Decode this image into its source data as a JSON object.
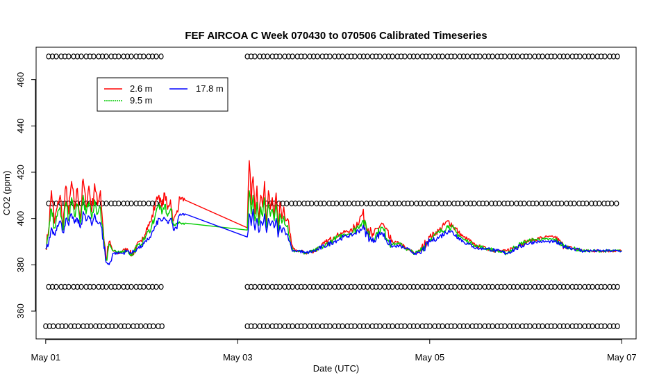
{
  "chart_data": {
    "type": "line",
    "title": "FEF AIRCOA C  Week 070430 to 070506  Calibrated Timeseries",
    "xlabel": "Date (UTC)",
    "ylabel": "CO2 (ppm)",
    "xlim": [
      -0.1,
      6.15
    ],
    "ylim": [
      348,
      474
    ],
    "x_ticks": [
      {
        "value": 0,
        "label": "May 01"
      },
      {
        "value": 2,
        "label": "May 03"
      },
      {
        "value": 4,
        "label": "May 05"
      },
      {
        "value": 6,
        "label": "May 07"
      }
    ],
    "y_ticks": [
      360,
      380,
      400,
      420,
      440,
      460
    ],
    "grid": false,
    "legend": {
      "placement": "top-left",
      "entries": [
        {
          "name": "2.6 m",
          "color": "#ff0000"
        },
        {
          "name": "9.5 m",
          "color": "#00cc00"
        },
        {
          "name": "17.8 m",
          "color": "#0000ff"
        }
      ]
    },
    "series": [
      {
        "name": "2.6 m",
        "color": "#ff0000",
        "x": [
          0.0,
          0.03,
          0.06,
          0.09,
          0.12,
          0.15,
          0.18,
          0.21,
          0.24,
          0.27,
          0.3,
          0.33,
          0.36,
          0.39,
          0.42,
          0.45,
          0.48,
          0.51,
          0.54,
          0.57,
          0.6,
          0.63,
          0.66,
          0.7,
          0.75,
          0.8,
          0.85,
          0.9,
          0.95,
          1.0,
          1.05,
          1.1,
          1.15,
          1.18,
          1.21,
          1.24,
          1.27,
          1.3,
          1.33,
          1.36,
          1.4,
          1.45,
          2.1,
          2.12,
          2.14,
          2.16,
          2.18,
          2.2,
          2.22,
          2.24,
          2.26,
          2.28,
          2.3,
          2.32,
          2.34,
          2.36,
          2.38,
          2.4,
          2.42,
          2.44,
          2.46,
          2.48,
          2.5,
          2.52,
          2.54,
          2.56,
          2.58,
          2.6,
          2.65,
          2.7,
          2.8,
          2.9,
          3.0,
          3.1,
          3.2,
          3.3,
          3.4,
          3.5,
          3.6,
          3.7,
          3.75,
          3.8,
          3.85,
          3.9,
          4.0,
          4.1,
          4.2,
          4.3,
          4.35,
          4.4,
          4.45,
          4.5,
          4.6,
          4.7,
          4.8,
          4.9,
          5.0,
          5.1,
          5.2,
          5.3,
          5.4,
          5.5,
          5.6,
          5.7,
          5.8,
          5.9,
          6.0
        ],
        "values": [
          387,
          395,
          412,
          398,
          405,
          410,
          396,
          414,
          402,
          416,
          404,
          413,
          400,
          417,
          405,
          414,
          403,
          415,
          406,
          412,
          395,
          382,
          390,
          386,
          385,
          386,
          387,
          384,
          389,
          390,
          396,
          399,
          408,
          410,
          405,
          411,
          404,
          408,
          399,
          402,
          409,
          408,
          396,
          425,
          406,
          418,
          402,
          414,
          399,
          410,
          405,
          416,
          398,
          412,
          404,
          409,
          401,
          411,
          396,
          407,
          400,
          405,
          399,
          400,
          394,
          389,
          387,
          386,
          386,
          385,
          386,
          389,
          392,
          394,
          395,
          402,
          392,
          398,
          390,
          389,
          387,
          386,
          385,
          386,
          392,
          395,
          399,
          394,
          392,
          391,
          389,
          388,
          387,
          386,
          386,
          388,
          390,
          391,
          392,
          392,
          388,
          387,
          386,
          386,
          386,
          386,
          386
        ]
      },
      {
        "name": "9.5 m",
        "color": "#00cc00",
        "x": [
          0.0,
          0.03,
          0.06,
          0.09,
          0.12,
          0.15,
          0.18,
          0.21,
          0.24,
          0.27,
          0.3,
          0.33,
          0.36,
          0.39,
          0.42,
          0.45,
          0.48,
          0.51,
          0.54,
          0.57,
          0.6,
          0.63,
          0.66,
          0.7,
          0.75,
          0.8,
          0.85,
          0.9,
          0.95,
          1.0,
          1.05,
          1.1,
          1.15,
          1.18,
          1.21,
          1.24,
          1.27,
          1.3,
          1.33,
          1.36,
          1.4,
          1.45,
          2.1,
          2.12,
          2.14,
          2.16,
          2.18,
          2.2,
          2.22,
          2.24,
          2.26,
          2.28,
          2.3,
          2.32,
          2.34,
          2.36,
          2.38,
          2.4,
          2.42,
          2.44,
          2.46,
          2.48,
          2.5,
          2.52,
          2.54,
          2.56,
          2.58,
          2.6,
          2.65,
          2.7,
          2.8,
          2.9,
          3.0,
          3.1,
          3.2,
          3.3,
          3.4,
          3.5,
          3.6,
          3.7,
          3.75,
          3.8,
          3.85,
          3.9,
          4.0,
          4.1,
          4.2,
          4.3,
          4.35,
          4.4,
          4.45,
          4.5,
          4.6,
          4.7,
          4.8,
          4.9,
          5.0,
          5.1,
          5.2,
          5.3,
          5.4,
          5.5,
          5.6,
          5.7,
          5.8,
          5.9,
          6.0
        ],
        "values": [
          387,
          393,
          404,
          396,
          401,
          405,
          395,
          407,
          399,
          409,
          401,
          406,
          398,
          410,
          402,
          407,
          400,
          408,
          402,
          405,
          393,
          382,
          389,
          386,
          385,
          386,
          386,
          384,
          388,
          389,
          393,
          396,
          403,
          406,
          402,
          406,
          401,
          404,
          397,
          398,
          398,
          398,
          395,
          412,
          402,
          410,
          399,
          407,
          397,
          405,
          401,
          409,
          396,
          406,
          401,
          404,
          399,
          406,
          394,
          402,
          398,
          401,
          397,
          397,
          392,
          388,
          386,
          386,
          386,
          385,
          386,
          388,
          391,
          393,
          394,
          399,
          391,
          396,
          389,
          389,
          387,
          386,
          385,
          386,
          391,
          394,
          397,
          393,
          391,
          390,
          389,
          388,
          387,
          386,
          385,
          388,
          390,
          391,
          391,
          391,
          388,
          387,
          386,
          386,
          386,
          386,
          386
        ]
      },
      {
        "name": "17.8 m",
        "color": "#0000ff",
        "x": [
          0.0,
          0.03,
          0.06,
          0.09,
          0.12,
          0.15,
          0.18,
          0.21,
          0.24,
          0.27,
          0.3,
          0.33,
          0.36,
          0.39,
          0.42,
          0.45,
          0.48,
          0.51,
          0.54,
          0.57,
          0.6,
          0.63,
          0.66,
          0.7,
          0.75,
          0.8,
          0.85,
          0.9,
          0.95,
          1.0,
          1.05,
          1.1,
          1.15,
          1.18,
          1.21,
          1.24,
          1.27,
          1.3,
          1.33,
          1.36,
          1.4,
          1.45,
          2.1,
          2.12,
          2.14,
          2.16,
          2.18,
          2.2,
          2.22,
          2.24,
          2.26,
          2.28,
          2.3,
          2.32,
          2.34,
          2.36,
          2.38,
          2.4,
          2.42,
          2.44,
          2.46,
          2.48,
          2.5,
          2.52,
          2.54,
          2.56,
          2.58,
          2.6,
          2.65,
          2.7,
          2.8,
          2.9,
          3.0,
          3.1,
          3.2,
          3.3,
          3.4,
          3.5,
          3.6,
          3.7,
          3.75,
          3.8,
          3.85,
          3.9,
          4.0,
          4.1,
          4.2,
          4.3,
          4.35,
          4.4,
          4.45,
          4.5,
          4.6,
          4.7,
          4.8,
          4.9,
          5.0,
          5.1,
          5.2,
          5.3,
          5.4,
          5.5,
          5.6,
          5.7,
          5.8,
          5.9,
          6.0
        ],
        "values": [
          387,
          389,
          396,
          393,
          397,
          399,
          394,
          400,
          397,
          402,
          398,
          400,
          396,
          403,
          399,
          401,
          397,
          402,
          398,
          398,
          391,
          381,
          380,
          385,
          385,
          385,
          386,
          385,
          387,
          388,
          390,
          393,
          397,
          400,
          399,
          400,
          398,
          400,
          395,
          396,
          402,
          402,
          392,
          402,
          397,
          404,
          395,
          400,
          394,
          399,
          397,
          402,
          394,
          400,
          397,
          399,
          396,
          400,
          392,
          397,
          394,
          396,
          393,
          393,
          390,
          387,
          386,
          386,
          386,
          385,
          386,
          388,
          390,
          392,
          393,
          396,
          390,
          394,
          388,
          388,
          387,
          386,
          385,
          385,
          390,
          392,
          395,
          392,
          390,
          389,
          388,
          387,
          387,
          386,
          385,
          387,
          389,
          390,
          390,
          390,
          388,
          387,
          386,
          386,
          386,
          386,
          386
        ]
      }
    ],
    "flag_rows": [
      {
        "y": 470,
        "segments": [
          [
            0.03,
            1.22
          ],
          [
            2.1,
            5.98
          ]
        ]
      },
      {
        "y": 406.5,
        "segments": [
          [
            0.03,
            1.22
          ],
          [
            2.3,
            5.98
          ]
        ]
      },
      {
        "y": 370.5,
        "segments": [
          [
            0.03,
            1.22
          ],
          [
            2.1,
            5.98
          ]
        ]
      },
      {
        "y": 353.5,
        "segments": [
          [
            0.0,
            1.22
          ],
          [
            2.1,
            5.98
          ]
        ]
      }
    ]
  }
}
